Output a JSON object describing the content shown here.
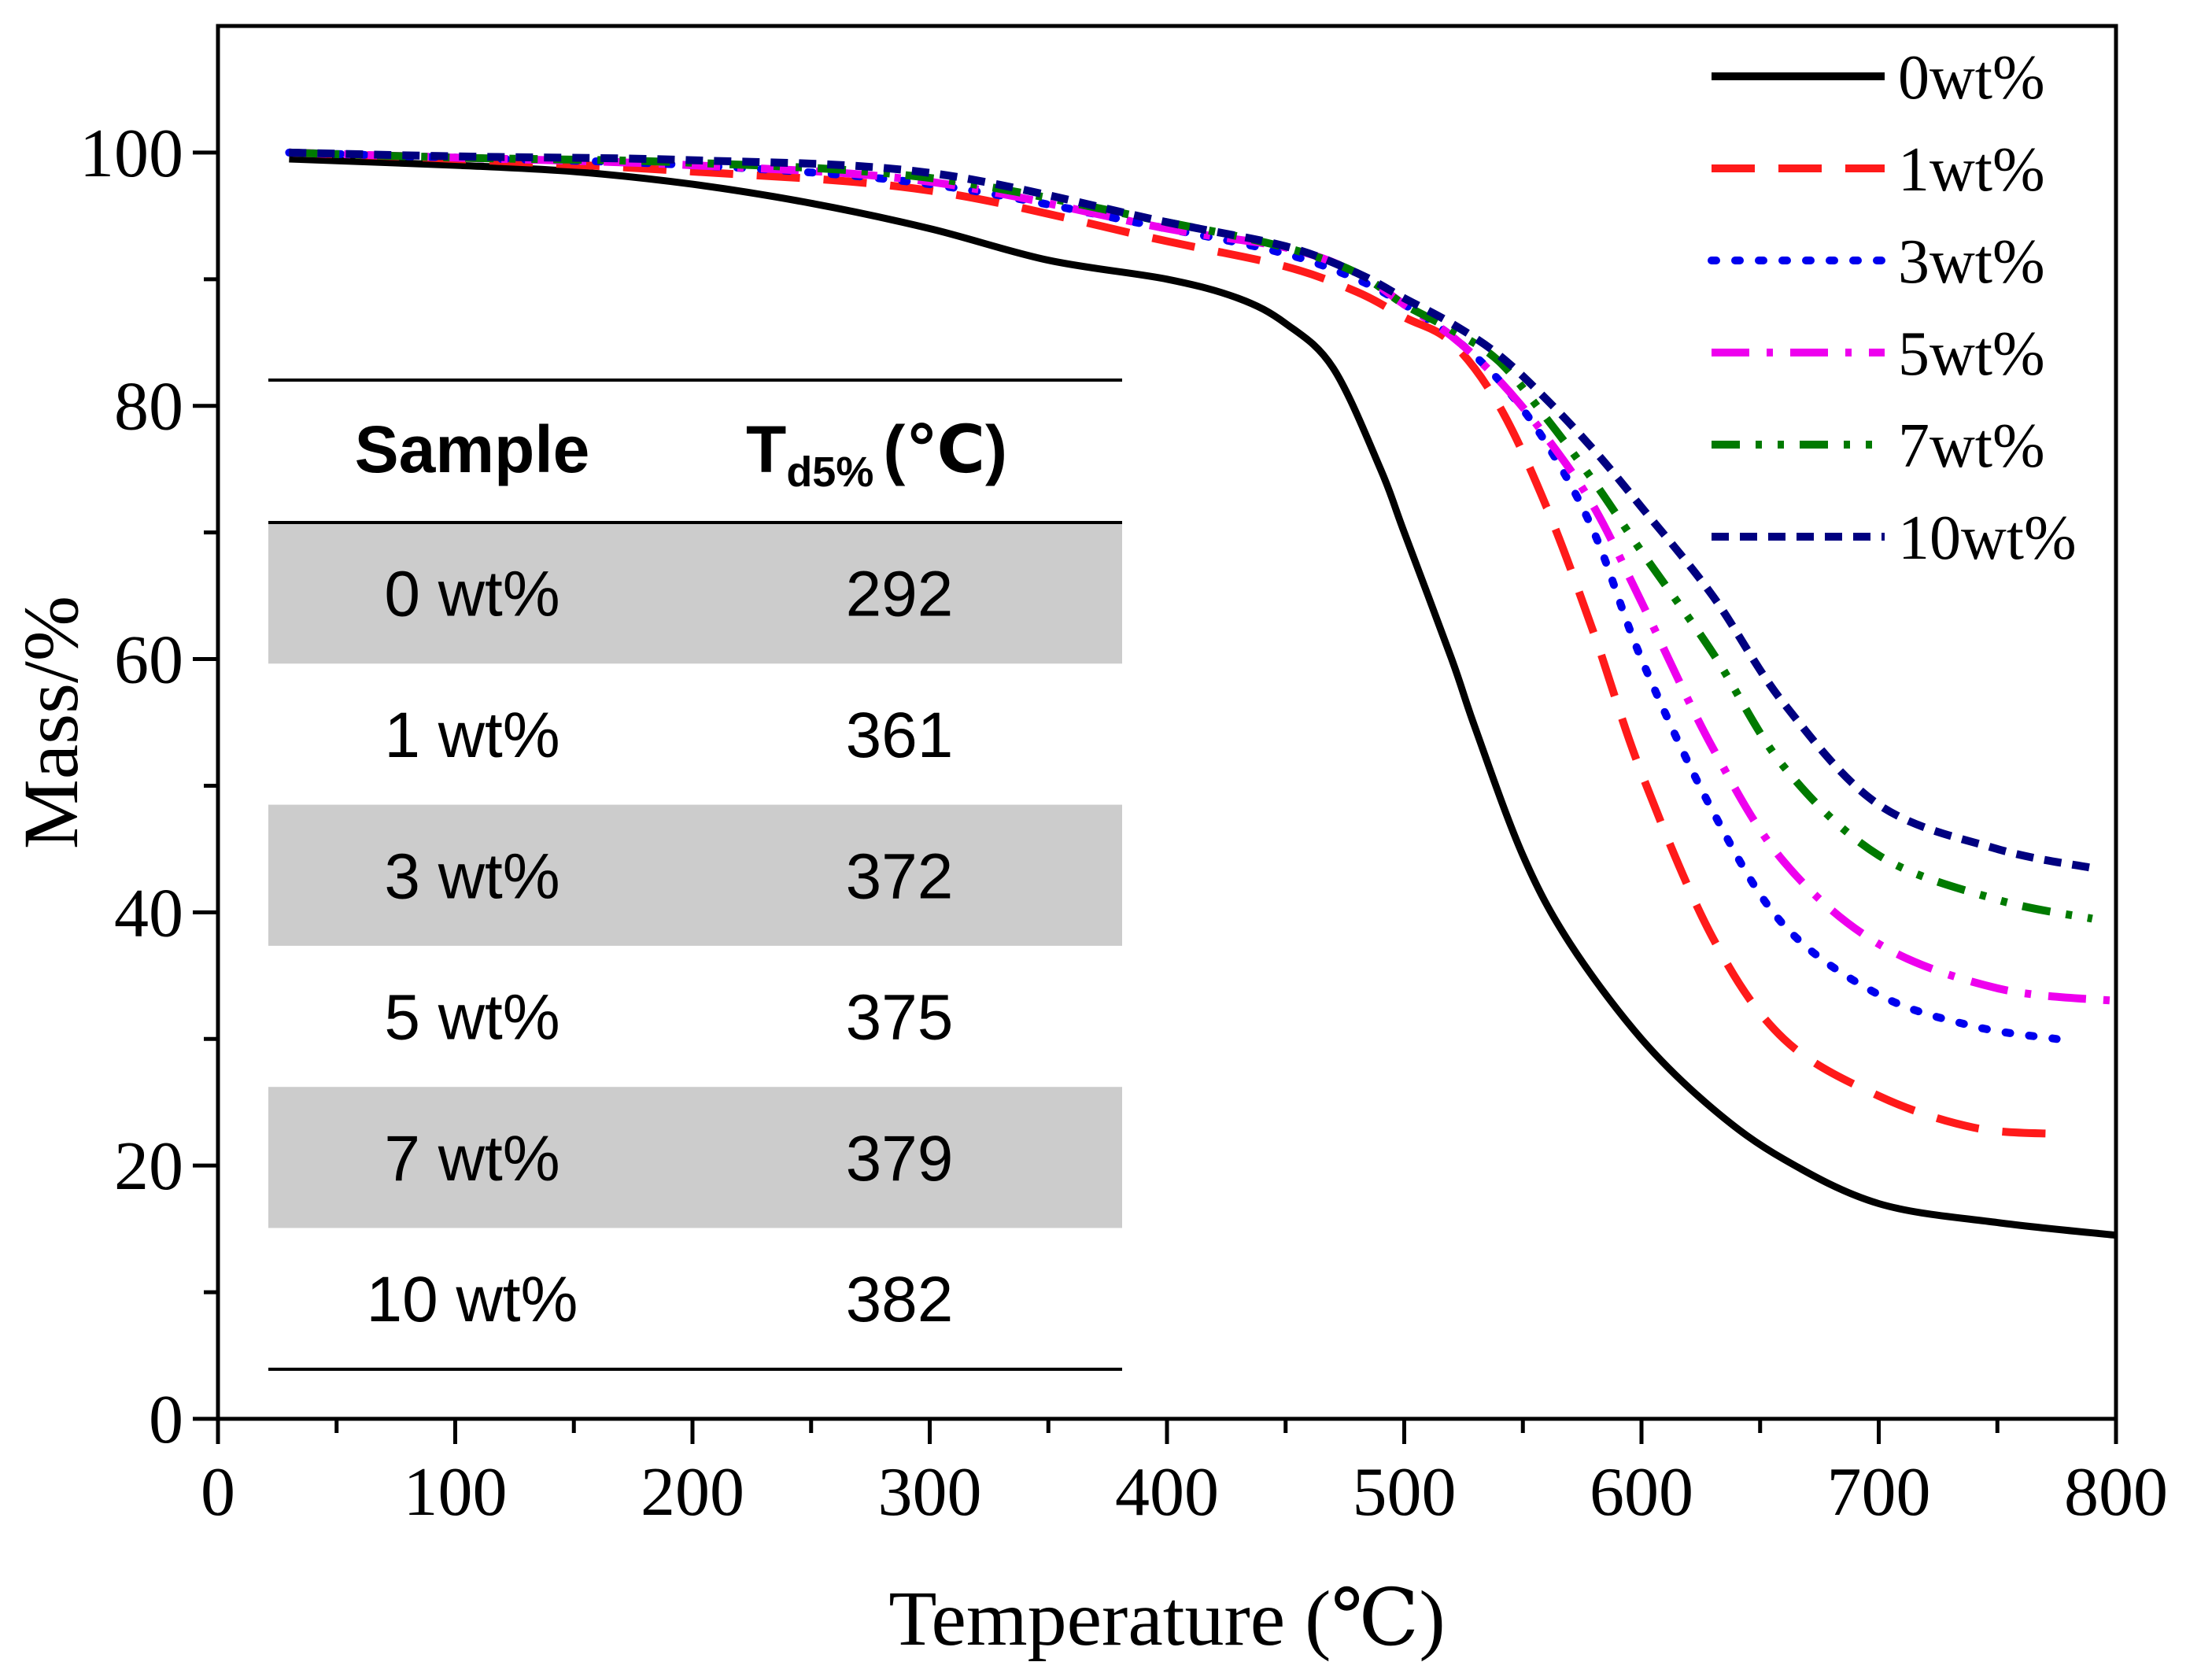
{
  "chart_data": {
    "type": "line",
    "title": "",
    "xlabel": "Temperature (℃)",
    "ylabel": "Mass/%",
    "xlim": [
      0,
      800
    ],
    "ylim": [
      0,
      110
    ],
    "xticks": [
      "0",
      "100",
      "200",
      "300",
      "400",
      "500",
      "600",
      "700",
      "800"
    ],
    "yticks": [
      "0",
      "20",
      "40",
      "60",
      "80",
      "100"
    ],
    "grid": false,
    "legend_position": "top-right",
    "series": [
      {
        "name": "0wt%",
        "color": "#000000",
        "dash": "solid",
        "x": [
          30,
          100,
          150,
          200,
          250,
          300,
          350,
          400,
          430,
          450,
          470,
          490,
          500,
          520,
          530,
          550,
          570,
          600,
          630,
          660,
          700,
          750,
          800
        ],
        "y": [
          99.5,
          99,
          98.5,
          97.5,
          96,
          94,
          91.5,
          90,
          88.5,
          86.5,
          83,
          75,
          70,
          60,
          54.5,
          44.5,
          37.5,
          30,
          24.5,
          20.5,
          17,
          15.5,
          14.5
        ]
      },
      {
        "name": "1wt%",
        "color": "#ff1a1a",
        "dash": "long-dash",
        "x": [
          30,
          100,
          200,
          300,
          400,
          450,
          480,
          500,
          520,
          540,
          560,
          580,
          600,
          630,
          660,
          700,
          740,
          775
        ],
        "y": [
          100,
          99.5,
          98.5,
          97,
          93,
          91,
          89,
          87,
          85,
          80,
          72,
          62,
          51,
          38,
          30,
          25.5,
          23,
          22.5
        ]
      },
      {
        "name": "3wt%",
        "color": "#0000ee",
        "dash": "dotted",
        "x": [
          30,
          100,
          200,
          300,
          400,
          450,
          480,
          500,
          520,
          540,
          560,
          580,
          600,
          630,
          660,
          700,
          740,
          775
        ],
        "y": [
          100,
          99.6,
          99,
          97.5,
          94,
          92,
          90,
          88,
          85.5,
          82,
          77,
          70,
          60,
          48,
          39,
          33.5,
          31,
          30
        ]
      },
      {
        "name": "5wt%",
        "color": "#ee00ee",
        "dash": "dash-dot",
        "x": [
          30,
          100,
          200,
          300,
          400,
          450,
          480,
          500,
          520,
          540,
          560,
          580,
          600,
          630,
          660,
          700,
          750,
          800
        ],
        "y": [
          100,
          99.6,
          99,
          97.7,
          94,
          92.5,
          90.5,
          88,
          85.5,
          82,
          77.5,
          72,
          64.5,
          53,
          44,
          37.5,
          34,
          33
        ]
      },
      {
        "name": "7wt%",
        "color": "#007a00",
        "dash": "dash-dot-dot",
        "x": [
          30,
          100,
          200,
          300,
          400,
          450,
          480,
          500,
          520,
          540,
          560,
          580,
          600,
          630,
          660,
          700,
          750,
          790
        ],
        "y": [
          100,
          99.6,
          99.2,
          98,
          94.5,
          92.5,
          90.5,
          88,
          86,
          83.5,
          79,
          74,
          68.5,
          60.5,
          51.5,
          44.5,
          41,
          39.5
        ]
      },
      {
        "name": "10wt%",
        "color": "#000080",
        "dash": "short-dash",
        "x": [
          30,
          100,
          200,
          300,
          400,
          450,
          480,
          500,
          520,
          540,
          560,
          580,
          600,
          630,
          660,
          700,
          750,
          790
        ],
        "y": [
          100,
          99.7,
          99.4,
          98.4,
          94.5,
          92.6,
          90.5,
          88.5,
          86.5,
          84,
          80.5,
          76.5,
          72,
          65,
          56.5,
          48.5,
          45,
          43.5
        ]
      }
    ],
    "inset_table": {
      "headers": [
        "Sample",
        "T",
        "d5%",
        "(℃)"
      ],
      "rows": [
        [
          "0 wt%",
          "292"
        ],
        [
          "1 wt%",
          "361"
        ],
        [
          "3 wt%",
          "372"
        ],
        [
          "5 wt%",
          "375"
        ],
        [
          "7 wt%",
          "379"
        ],
        [
          "10 wt%",
          "382"
        ]
      ]
    }
  }
}
